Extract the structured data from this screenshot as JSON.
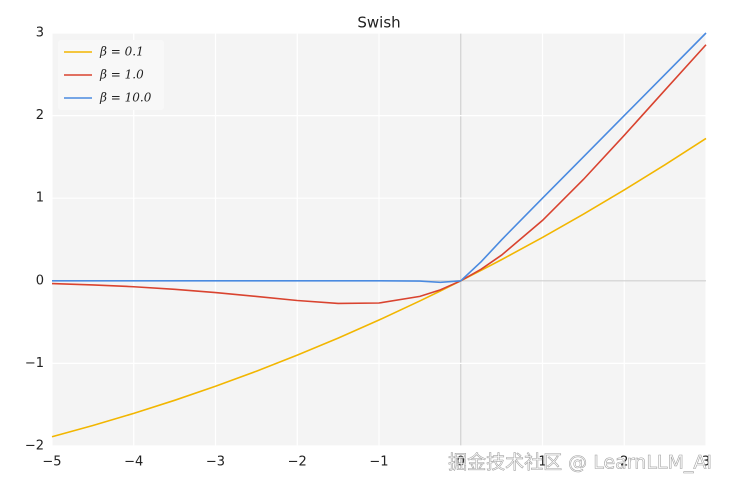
{
  "chart_data": {
    "type": "line",
    "title": "Swish",
    "x": [
      -5,
      -4.5,
      -4,
      -3.5,
      -3,
      -2.5,
      -2,
      -1.5,
      -1,
      -0.5,
      -0.25,
      0,
      0.25,
      0.5,
      1,
      1.5,
      2,
      2.5,
      3
    ],
    "series": [
      {
        "name": "β = 0.1",
        "color": "#f2b600",
        "values": [
          -1.8877,
          -1.7522,
          -1.6052,
          -1.4468,
          -1.2767,
          -1.0945,
          -0.9003,
          -0.6939,
          -0.475,
          -0.2438,
          -0.1234,
          0,
          0.1266,
          0.2562,
          0.525,
          0.8061,
          1.0997,
          1.4055,
          1.7233
        ]
      },
      {
        "name": "β = 1.0",
        "color": "#d9432f",
        "values": [
          -0.0335,
          -0.0495,
          -0.0719,
          -0.1026,
          -0.1423,
          -0.1896,
          -0.2384,
          -0.2736,
          -0.2689,
          -0.1888,
          -0.1094,
          0,
          0.1406,
          0.3112,
          0.7311,
          1.2264,
          1.7616,
          2.3104,
          2.8577
        ]
      },
      {
        "name": "β = 10.0",
        "color": "#4a8ae0",
        "values": [
          0,
          0,
          0,
          0,
          0,
          0,
          0,
          0,
          0,
          -0.0033,
          -0.019,
          0,
          0.231,
          0.4966,
          1,
          1.5,
          2,
          2.5,
          3
        ]
      }
    ],
    "xlim": [
      -5,
      3
    ],
    "ylim": [
      -2,
      3
    ],
    "xticks": [
      {
        "value": -5,
        "label": "−5"
      },
      {
        "value": -4,
        "label": "−4"
      },
      {
        "value": -3,
        "label": "−3"
      },
      {
        "value": -2,
        "label": "−2"
      },
      {
        "value": -1,
        "label": "−1"
      },
      0,
      1,
      2,
      3
    ],
    "yticks": [
      {
        "value": -2,
        "label": "−2"
      },
      {
        "value": -1,
        "label": "−1"
      },
      0,
      1,
      2,
      3
    ],
    "grid": true,
    "legend": "upper left",
    "watermark": "掘金技术社区 @ LearnLLM_AI"
  }
}
